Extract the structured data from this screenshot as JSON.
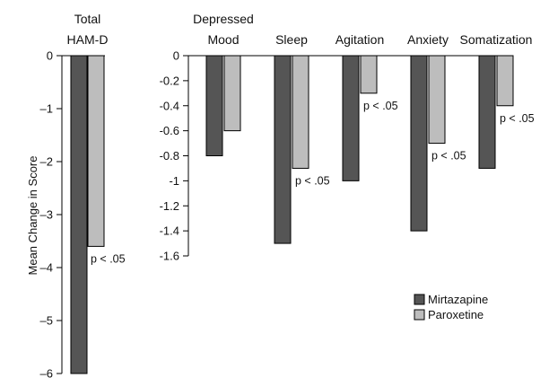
{
  "chart_data": {
    "type": "bar",
    "ylabel": "Mean Change in Score",
    "legend": {
      "placement": "bottom-right",
      "items": [
        {
          "name": "Mirtazapine",
          "color": "#555555"
        },
        {
          "name": "Paroxetine",
          "color": "#bdbdbd"
        }
      ]
    },
    "panels": [
      {
        "categories": [
          {
            "line1": "Total",
            "line2": "HAM-D"
          }
        ],
        "ylim": [
          -6,
          0
        ],
        "ticks": [
          {
            "value": 0,
            "label": "0"
          },
          {
            "value": -1,
            "label": "–1"
          },
          {
            "value": -2,
            "label": "–2"
          },
          {
            "value": -3,
            "label": "–3"
          },
          {
            "value": -4,
            "label": "–4"
          },
          {
            "value": -5,
            "label": "–5"
          },
          {
            "value": -6,
            "label": "–6"
          }
        ],
        "series": [
          {
            "name": "Mirtazapine",
            "values": [
              -6.0
            ]
          },
          {
            "name": "Paroxetine",
            "values": [
              -3.6
            ]
          }
        ],
        "annotations": [
          "p < .05"
        ]
      },
      {
        "categories": [
          {
            "line1": "Depressed",
            "line2": "Mood"
          },
          {
            "line1": "",
            "line2": "Sleep"
          },
          {
            "line1": "",
            "line2": "Agitation"
          },
          {
            "line1": "",
            "line2": "Anxiety"
          },
          {
            "line1": "",
            "line2": "Somatization"
          }
        ],
        "ylim": [
          -1.6,
          0
        ],
        "ticks": [
          {
            "value": 0,
            "label": "0"
          },
          {
            "value": -0.2,
            "label": "-0.2"
          },
          {
            "value": -0.4,
            "label": "-0.4"
          },
          {
            "value": -0.6,
            "label": "-0.6"
          },
          {
            "value": -0.8,
            "label": "-0.8"
          },
          {
            "value": -1.0,
            "label": "-1"
          },
          {
            "value": -1.2,
            "label": "-1.2"
          },
          {
            "value": -1.4,
            "label": "-1.4"
          },
          {
            "value": -1.6,
            "label": "-1.6"
          }
        ],
        "series": [
          {
            "name": "Mirtazapine",
            "values": [
              -0.8,
              -1.5,
              -1.0,
              -1.4,
              -0.9
            ]
          },
          {
            "name": "Paroxetine",
            "values": [
              -0.6,
              -0.9,
              -0.3,
              -0.7,
              -0.4
            ]
          }
        ],
        "annotations": [
          "",
          "p < .05",
          "p < .05",
          "p < .05",
          "p < .05"
        ]
      }
    ]
  }
}
